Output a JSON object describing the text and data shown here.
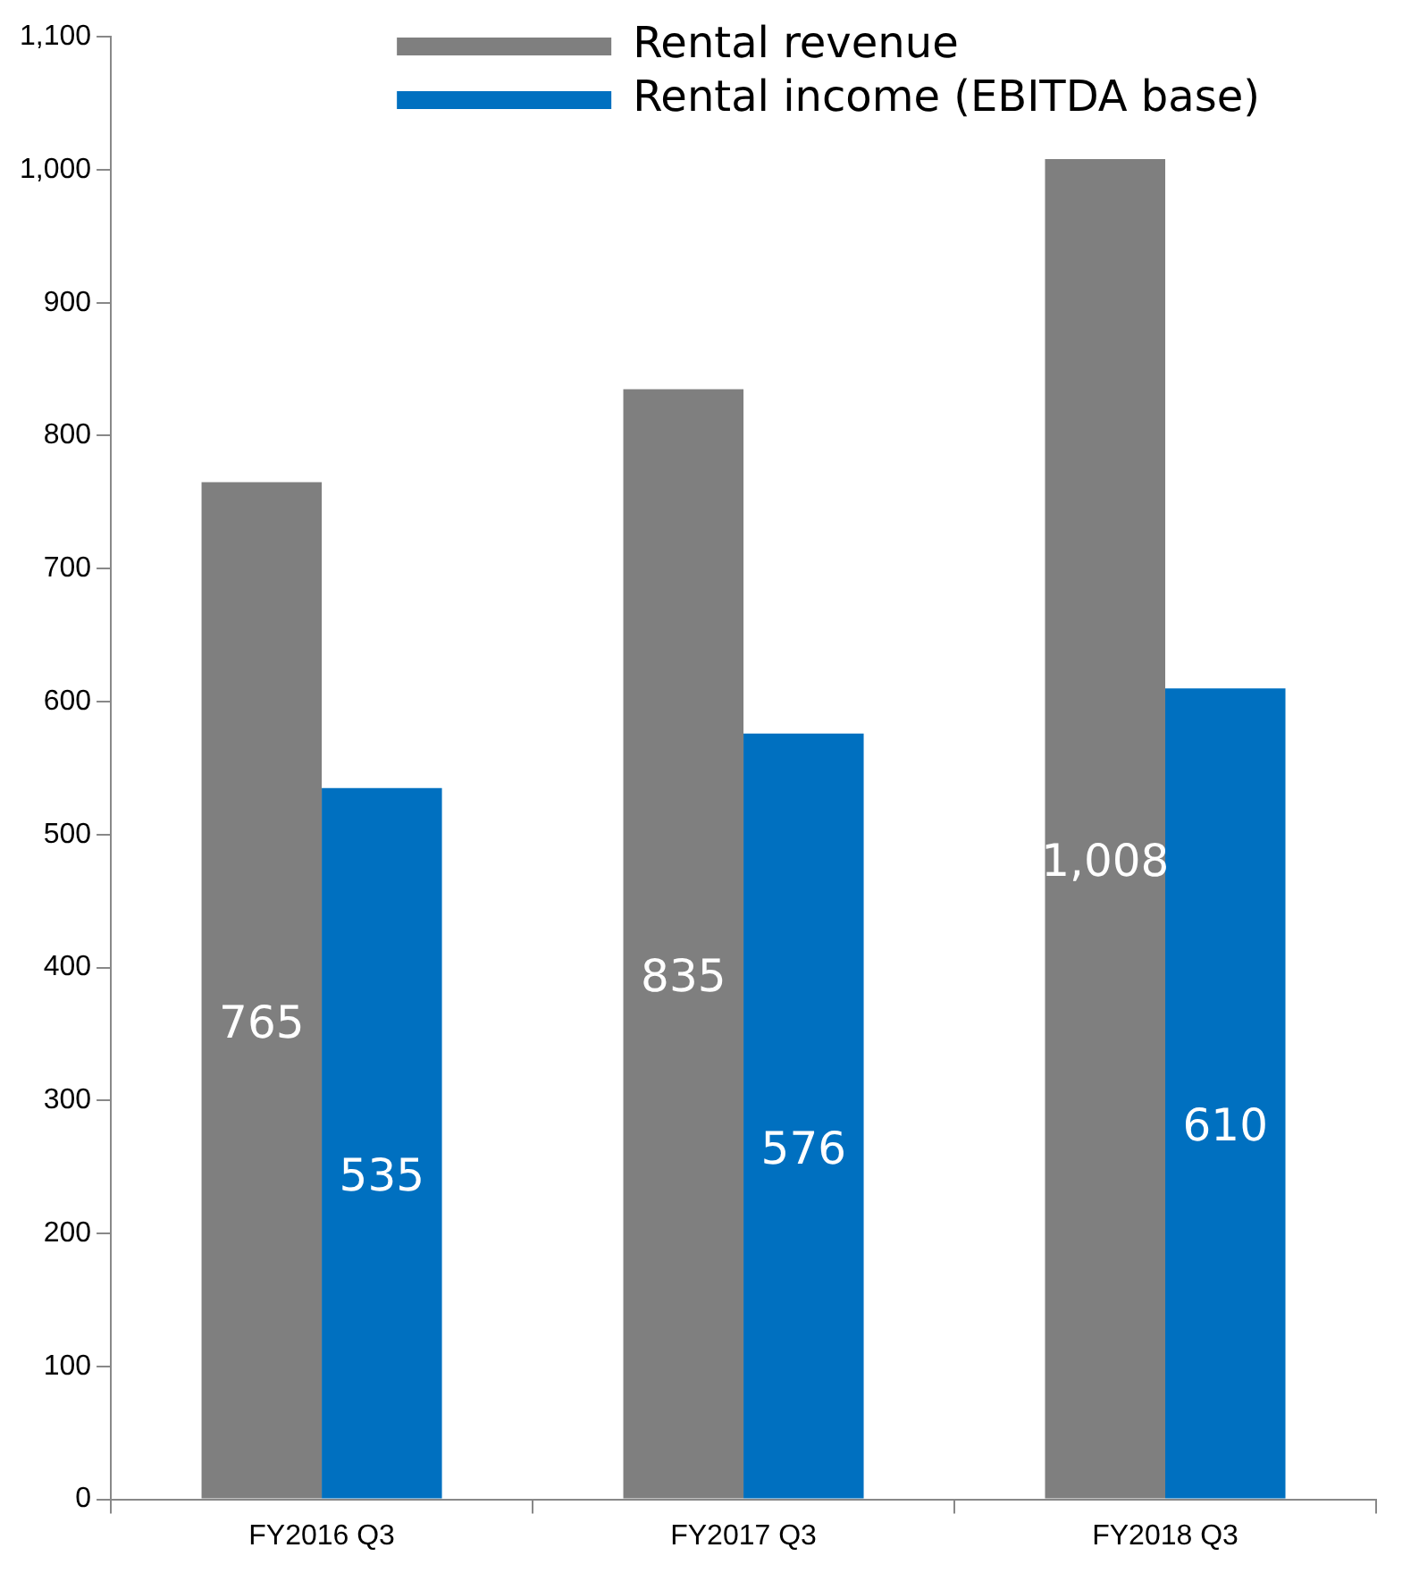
{
  "chart_data": {
    "type": "bar",
    "categories": [
      "FY2016 Q3",
      "FY2017 Q3",
      "FY2018 Q3"
    ],
    "series": [
      {
        "name": "Rental revenue",
        "color": "#7f7f7f",
        "values": [
          765,
          835,
          1008
        ],
        "value_labels": [
          "765",
          "835",
          "1,008"
        ]
      },
      {
        "name": "Rental income (EBITDA base)",
        "color": "#0070c0",
        "values": [
          535,
          576,
          610
        ],
        "value_labels": [
          "535",
          "576",
          "610"
        ]
      }
    ],
    "ylim": [
      0,
      1100
    ],
    "yticks": [
      {
        "value": 0,
        "label": "0"
      },
      {
        "value": 100,
        "label": "100"
      },
      {
        "value": 200,
        "label": "200"
      },
      {
        "value": 300,
        "label": "300"
      },
      {
        "value": 400,
        "label": "400"
      },
      {
        "value": 500,
        "label": "500"
      },
      {
        "value": 600,
        "label": "600"
      },
      {
        "value": 700,
        "label": "700"
      },
      {
        "value": 800,
        "label": "800"
      },
      {
        "value": 900,
        "label": "900"
      },
      {
        "value": 1000,
        "label": "1,000"
      },
      {
        "value": 1100,
        "label": "1,100"
      }
    ],
    "grid": false,
    "legend": "top"
  }
}
